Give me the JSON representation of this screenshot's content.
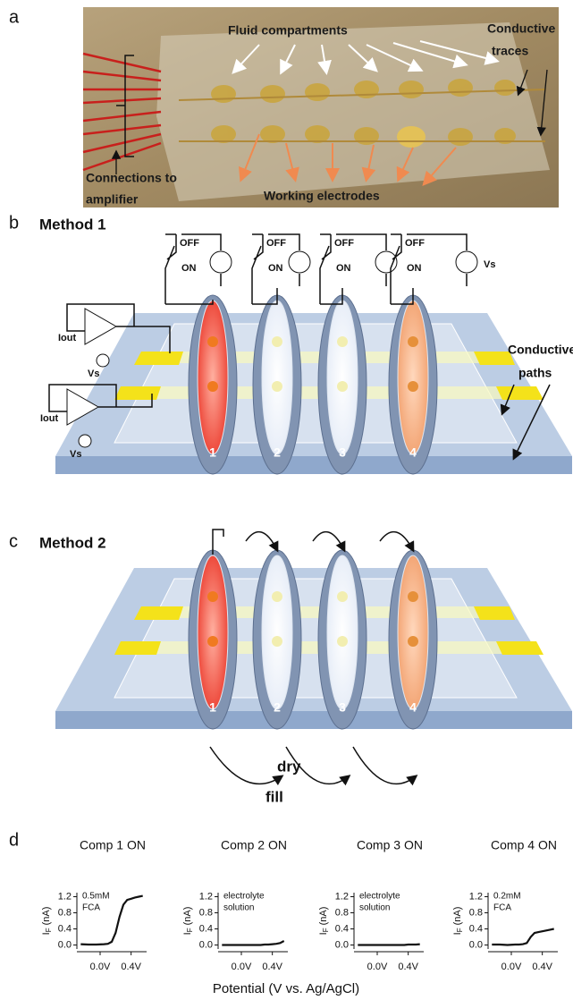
{
  "panel_a": {
    "label": "a",
    "fluid_compartments": "Fluid compartments",
    "conductive_traces": [
      "Conductive",
      "traces"
    ],
    "connections": [
      "Connections to",
      "amplifier"
    ],
    "working_electrodes": "Working electrodes"
  },
  "panel_b": {
    "label": "b",
    "title": "Method 1",
    "switches": [
      {
        "off": "OFF",
        "on": "ON"
      },
      {
        "off": "OFF",
        "on": "ON"
      },
      {
        "off": "OFF",
        "on": "ON"
      },
      {
        "off": "OFF",
        "on": "ON"
      }
    ],
    "source_label": "Vs",
    "amplifiers": [
      {
        "out": "Iout",
        "source": "Vs"
      },
      {
        "out": "Iout",
        "source": "Vs"
      }
    ],
    "conductive_paths": [
      "Conductive",
      "paths"
    ],
    "compartments": [
      "1",
      "2",
      "3",
      "4"
    ]
  },
  "panel_c": {
    "label": "c",
    "title": "Method 2",
    "compartments": [
      "1",
      "2",
      "3",
      "4"
    ],
    "dry": "dry",
    "fill": "fill"
  },
  "panel_d": {
    "label": "d",
    "xlabel": "Potential (V vs. Ag/AgCl)"
  },
  "chart_data": [
    {
      "type": "line",
      "title": "Comp 1 ON",
      "annotation": [
        "0.5mM",
        "FCA"
      ],
      "ylabel": {
        "main": "I",
        "sub": "F",
        "unit": "(nA)"
      },
      "x": [
        -0.25,
        -0.15,
        -0.05,
        0.05,
        0.1,
        0.15,
        0.2,
        0.25,
        0.3,
        0.35,
        0.4,
        0.45,
        0.5,
        0.55
      ],
      "values": [
        0.02,
        0.01,
        0.01,
        0.02,
        0.03,
        0.08,
        0.3,
        0.7,
        1.0,
        1.12,
        1.15,
        1.18,
        1.2,
        1.22
      ],
      "color": "#111111",
      "xlim": [
        -0.3,
        0.6
      ],
      "xticks": [
        {
          "value": 0,
          "label": "0.0V"
        },
        {
          "value": 0.4,
          "label": "0.4V"
        }
      ],
      "ylim": [
        -0.1,
        1.3
      ],
      "yticks": [
        {
          "value": 0,
          "label": "0.0"
        },
        0.4,
        0.8,
        1.2
      ]
    },
    {
      "type": "line",
      "title": "Comp 2 ON",
      "annotation": [
        "electrolyte",
        "solution"
      ],
      "ylabel": {
        "main": "I",
        "sub": "F",
        "unit": "(nA)"
      },
      "x": [
        -0.25,
        -0.15,
        -0.05,
        0.05,
        0.1,
        0.15,
        0.2,
        0.25,
        0.3,
        0.35,
        0.4,
        0.45,
        0.5,
        0.55
      ],
      "values": [
        0,
        0,
        0,
        0,
        0,
        0,
        0,
        0,
        0.01,
        0.01,
        0.02,
        0.03,
        0.05,
        0.1
      ],
      "color": "#111111",
      "xlim": [
        -0.3,
        0.6
      ],
      "xticks": [
        {
          "value": 0,
          "label": "0.0V"
        },
        {
          "value": 0.4,
          "label": "0.4V"
        }
      ],
      "ylim": [
        -0.1,
        1.3
      ],
      "yticks": [
        {
          "value": 0,
          "label": "0.0"
        },
        0.4,
        0.8,
        1.2
      ]
    },
    {
      "type": "line",
      "title": "Comp 3 ON",
      "annotation": [
        "electrolyte",
        "solution"
      ],
      "ylabel": {
        "main": "I",
        "sub": "F",
        "unit": "(nA)"
      },
      "x": [
        -0.25,
        -0.15,
        -0.05,
        0.05,
        0.1,
        0.15,
        0.2,
        0.25,
        0.3,
        0.35,
        0.4,
        0.45,
        0.5,
        0.55
      ],
      "values": [
        0,
        0,
        0,
        0,
        0,
        0,
        0,
        0,
        0,
        0,
        0.01,
        0.01,
        0.01,
        0.02
      ],
      "color": "#111111",
      "xlim": [
        -0.3,
        0.6
      ],
      "xticks": [
        {
          "value": 0,
          "label": "0.0V"
        },
        {
          "value": 0.4,
          "label": "0.4V"
        }
      ],
      "ylim": [
        -0.1,
        1.3
      ],
      "yticks": [
        {
          "value": 0,
          "label": "0.0"
        },
        0.4,
        0.8,
        1.2
      ]
    },
    {
      "type": "line",
      "title": "Comp 4 ON",
      "annotation": [
        "0.2mM",
        "FCA"
      ],
      "ylabel": {
        "main": "I",
        "sub": "F",
        "unit": "(nA)"
      },
      "x": [
        -0.25,
        -0.15,
        -0.05,
        0.05,
        0.1,
        0.15,
        0.2,
        0.25,
        0.3,
        0.35,
        0.4,
        0.45,
        0.5,
        0.55
      ],
      "values": [
        0.01,
        0.01,
        0,
        0.01,
        0.01,
        0.02,
        0.05,
        0.2,
        0.3,
        0.32,
        0.34,
        0.36,
        0.38,
        0.4
      ],
      "color": "#111111",
      "xlim": [
        -0.3,
        0.6
      ],
      "xticks": [
        {
          "value": 0,
          "label": "0.0V"
        },
        {
          "value": 0.4,
          "label": "0.4V"
        }
      ],
      "ylim": [
        -0.1,
        1.3
      ],
      "yticks": [
        {
          "value": 0,
          "label": "0.0"
        },
        0.4,
        0.8,
        1.2
      ]
    }
  ]
}
